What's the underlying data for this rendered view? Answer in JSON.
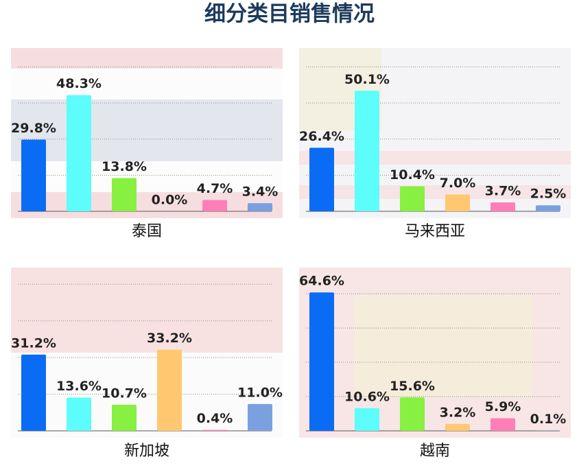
{
  "title": "细分类目销售情况",
  "chart_data": [
    {
      "type": "bar",
      "title": "泰国",
      "categories": [
        null,
        null,
        null,
        null,
        null,
        null
      ],
      "values": [
        29.8,
        48.3,
        13.8,
        0.0,
        4.7,
        3.4
      ],
      "value_labels": [
        "29.8%",
        "48.3%",
        "13.8%",
        "0.0%",
        "4.7%",
        "3.4%"
      ],
      "colors": [
        "#0a6cf5",
        "#5cfdfb",
        "#88f040",
        "#ffc870",
        "#ff7eb6",
        "#7aa0e0"
      ],
      "ylim": [
        0,
        65
      ],
      "yticks": [
        0,
        15,
        30,
        45,
        60
      ],
      "grid": true
    },
    {
      "type": "bar",
      "title": "马来西亚",
      "categories": [
        null,
        null,
        null,
        null,
        null,
        null
      ],
      "values": [
        26.4,
        50.1,
        10.4,
        7.0,
        3.7,
        2.5
      ],
      "value_labels": [
        "26.4%",
        "50.1%",
        "10.4%",
        "7.0%",
        "3.7%",
        "2.5%"
      ],
      "colors": [
        "#0a6cf5",
        "#5cfdfb",
        "#88f040",
        "#ffc870",
        "#ff7eb6",
        "#7aa0e0"
      ],
      "ylim": [
        0,
        65
      ],
      "yticks": [
        0,
        15,
        30,
        45,
        60
      ],
      "grid": true
    },
    {
      "type": "bar",
      "title": "新加坡",
      "categories": [
        null,
        null,
        null,
        null,
        null,
        null
      ],
      "values": [
        31.2,
        13.6,
        10.7,
        33.2,
        0.4,
        11.0
      ],
      "value_labels": [
        "31.2%",
        "13.6%",
        "10.7%",
        "33.2%",
        "0.4%",
        "11.0%"
      ],
      "colors": [
        "#0a6cf5",
        "#5cfdfb",
        "#88f040",
        "#ffc870",
        "#ff7eb6",
        "#7aa0e0"
      ],
      "ylim": [
        0,
        64
      ],
      "yticks": [
        0,
        15,
        30,
        45,
        60
      ],
      "grid": true
    },
    {
      "type": "bar",
      "title": "越南",
      "categories": [
        null,
        null,
        null,
        null,
        null,
        null
      ],
      "values": [
        64.6,
        10.6,
        15.6,
        3.2,
        5.9,
        0.1
      ],
      "value_labels": [
        "64.6%",
        "10.6%",
        "15.6%",
        "3.2%",
        "5.9%",
        "0.1%"
      ],
      "colors": [
        "#0a6cf5",
        "#5cfdfb",
        "#88f040",
        "#ffc870",
        "#ff7eb6",
        "#7aa0e0"
      ],
      "ylim": [
        0,
        73
      ],
      "yticks": [
        0,
        16,
        32,
        48,
        64
      ],
      "grid": true
    }
  ]
}
